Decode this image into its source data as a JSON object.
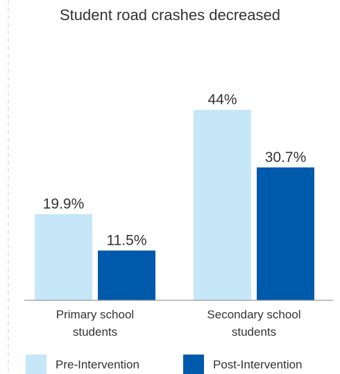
{
  "chart_data": {
    "type": "bar",
    "title": "Student road crashes decreased",
    "categories": [
      [
        "Primary school",
        "students"
      ],
      [
        "Secondary school",
        "students"
      ]
    ],
    "series": [
      {
        "name": "Pre-Intervention",
        "color": "#c5e7f8",
        "values": [
          19.9,
          44
        ],
        "labels": [
          "19.9%",
          "44%"
        ]
      },
      {
        "name": "Post-Intervention",
        "color": "#005aab",
        "values": [
          11.5,
          30.7
        ],
        "labels": [
          "11.5%",
          "30.7%"
        ]
      }
    ],
    "unit": "%",
    "ylim": [
      0,
      44
    ],
    "grid": false,
    "legend": "bottom"
  }
}
